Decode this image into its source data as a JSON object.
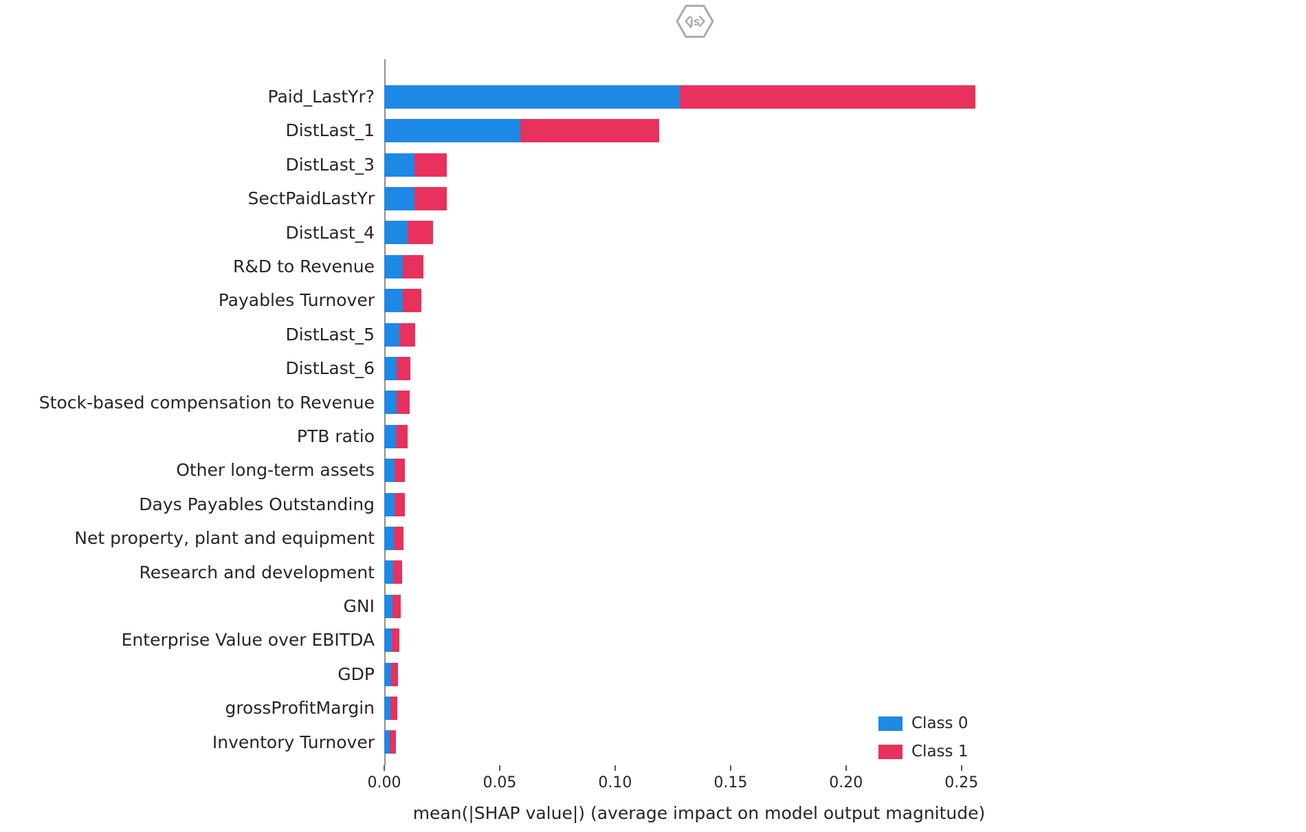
{
  "logo": {
    "text": "js"
  },
  "colors": {
    "class0": "#1E88E5",
    "class1": "#E8315C",
    "axis_line": "#8f8f8f",
    "text": "#262626",
    "logo_gray": "#ababab"
  },
  "chart_data": {
    "type": "bar",
    "orientation": "horizontal",
    "stacked": true,
    "title": "",
    "xlabel": "mean(|SHAP value|) (average impact on model output magnitude)",
    "ylabel": "",
    "xlim": [
      0,
      0.2727
    ],
    "grid": false,
    "legend_position": "lower right",
    "xticks": [
      "0.00",
      "0.05",
      "0.10",
      "0.15",
      "0.20",
      "0.25"
    ],
    "xtick_values": [
      0,
      0.05,
      0.1,
      0.15,
      0.2,
      0.25
    ],
    "categories": [
      "Paid_LastYr?",
      "DistLast_1",
      "DistLast_3",
      "SectPaidLastYr",
      "DistLast_4",
      "R&D to Revenue",
      "Payables Turnover",
      "DistLast_5",
      "DistLast_6",
      "Stock-based compensation to Revenue",
      "PTB ratio",
      "Other long-term assets",
      "Days Payables Outstanding",
      "Net property, plant and equipment",
      "Research and development",
      "GNI",
      "Enterprise Value over EBITDA",
      "GDP",
      "grossProfitMargin",
      "Inventory Turnover"
    ],
    "series": [
      {
        "name": "Class 0",
        "color": "#1E88E5",
        "values": [
          0.128,
          0.059,
          0.013,
          0.013,
          0.01,
          0.008,
          0.008,
          0.0065,
          0.0055,
          0.0055,
          0.005,
          0.0045,
          0.0044,
          0.0041,
          0.0038,
          0.0035,
          0.0033,
          0.003,
          0.0028,
          0.0025
        ]
      },
      {
        "name": "Class 1",
        "color": "#E8315C",
        "values": [
          0.128,
          0.06,
          0.014,
          0.014,
          0.011,
          0.009,
          0.008,
          0.0068,
          0.0057,
          0.0056,
          0.005,
          0.0045,
          0.0045,
          0.0042,
          0.0039,
          0.0036,
          0.0034,
          0.0031,
          0.0028,
          0.0026
        ]
      }
    ]
  }
}
